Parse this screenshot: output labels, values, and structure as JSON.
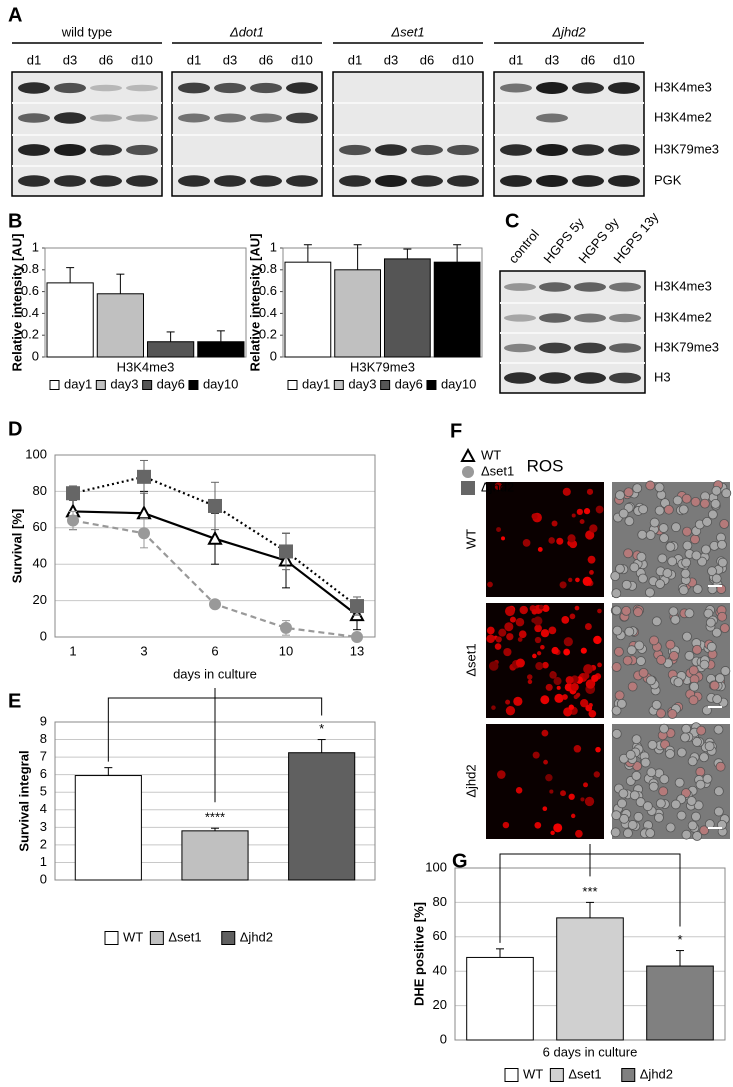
{
  "panel_labels": [
    "A",
    "B",
    "C",
    "D",
    "E",
    "F",
    "G"
  ],
  "blot_A": {
    "groups": [
      "wild type",
      "Δdot1",
      "Δset1",
      "Δjhd2"
    ],
    "lanes": [
      "d1",
      "d3",
      "d6",
      "d10"
    ],
    "rows": [
      "H3K4me3",
      "H3K4me2",
      "H3K79me3",
      "PGK"
    ]
  },
  "blot_C": {
    "lanes": [
      "control",
      "HGPS 5y",
      "HGPS 9y",
      "HGPS 13y"
    ],
    "rows": [
      "H3K4me3",
      "H3K4me2",
      "H3K79me3",
      "H3"
    ]
  },
  "micrographs_F": {
    "title": "ROS",
    "rows": [
      "WT",
      "Δset1",
      "Δjhd2"
    ]
  },
  "chart_data": [
    {
      "type": "bar",
      "xlabel": "H3K4me3",
      "ylabel": "Relative intensity [AU]",
      "categories": [
        "day1",
        "day3",
        "day6",
        "day10"
      ],
      "values": [
        0.68,
        0.58,
        0.14,
        0.14
      ],
      "errors": [
        0.14,
        0.18,
        0.09,
        0.1
      ],
      "colors": [
        "#ffffff",
        "#c0c0c0",
        "#555555",
        "#000000"
      ],
      "ylim": [
        0,
        1
      ],
      "yticks": [
        0,
        0.2,
        0.4,
        0.6,
        0.8,
        1
      ],
      "grid": false
    },
    {
      "type": "bar",
      "xlabel": "H3K79me3",
      "ylabel": "Relative intensity [AU]",
      "categories": [
        "day1",
        "day3",
        "day6",
        "day10"
      ],
      "values": [
        0.87,
        0.8,
        0.9,
        0.87
      ],
      "errors": [
        0.16,
        0.23,
        0.09,
        0.16
      ],
      "colors": [
        "#ffffff",
        "#c0c0c0",
        "#555555",
        "#000000"
      ],
      "ylim": [
        0,
        1
      ],
      "yticks": [
        0,
        0.2,
        0.4,
        0.6,
        0.8,
        1
      ],
      "grid": false
    },
    {
      "type": "line",
      "xlabel": "days in culture",
      "ylabel": "Survival [%]",
      "categories": [
        "1",
        "3",
        "6",
        "10",
        "13"
      ],
      "series": [
        {
          "name": "WT",
          "color": "#000000",
          "marker": "triangle",
          "line_style": "solid",
          "values": [
            69,
            68,
            54,
            42,
            12
          ],
          "errors": [
            10,
            12,
            14,
            15,
            8
          ]
        },
        {
          "name": "Δset1",
          "color": "#999999",
          "marker": "circle",
          "line_style": "dashed",
          "values": [
            64,
            57,
            18,
            5,
            0
          ],
          "errors": [
            5,
            8,
            2,
            4,
            1
          ]
        },
        {
          "name": "Δjhd2",
          "color": "#666666",
          "marker": "square",
          "line_style": "dotted",
          "values": [
            79,
            88,
            72,
            47,
            17
          ],
          "errors": [
            4,
            9,
            13,
            10,
            5
          ]
        }
      ],
      "ylim": [
        0,
        100
      ],
      "yticks": [
        0,
        20,
        40,
        60,
        80,
        100
      ],
      "grid": true
    },
    {
      "type": "bar",
      "ylabel": "Survival integral",
      "categories": [
        "WT",
        "Δset1",
        "Δjhd2"
      ],
      "values": [
        5.95,
        2.8,
        7.25
      ],
      "errors": [
        0.45,
        0.15,
        0.75
      ],
      "significance": [
        null,
        "****",
        "*"
      ],
      "colors": [
        "#ffffff",
        "#c0c0c0",
        "#606060"
      ],
      "ylim": [
        0,
        9
      ],
      "yticks": [
        0,
        1,
        2,
        3,
        4,
        5,
        6,
        7,
        8,
        9
      ],
      "grid": true
    },
    {
      "type": "bar",
      "xlabel": "6 days in culture",
      "ylabel": "DHE positive [%]",
      "categories": [
        "WT",
        "Δset1",
        "Δjhd2"
      ],
      "values": [
        48,
        71,
        43
      ],
      "errors": [
        5,
        9,
        9
      ],
      "significance": [
        null,
        "***",
        "*"
      ],
      "colors": [
        "#ffffff",
        "#d0d0d0",
        "#808080"
      ],
      "ylim": [
        0,
        100
      ],
      "yticks": [
        0,
        20,
        40,
        60,
        80,
        100
      ],
      "grid": true
    }
  ]
}
